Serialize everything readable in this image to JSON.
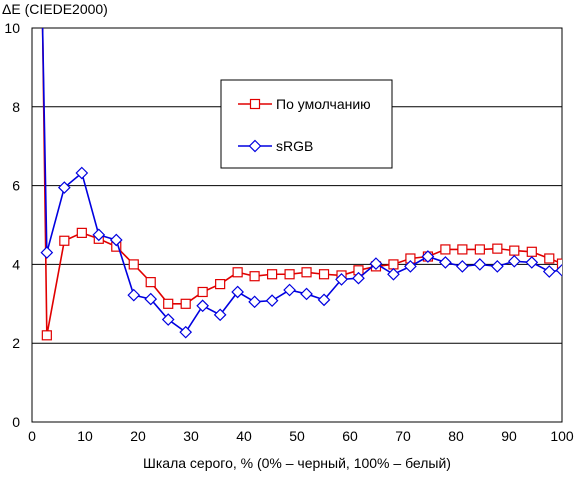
{
  "chart_data": {
    "type": "line",
    "title": "",
    "ylabel": "ΔE (CIEDE2000)",
    "xlabel": "Шкала серого, % (0% – черный, 100% – белый)",
    "xlim": [
      0,
      100
    ],
    "ylim": [
      0,
      10
    ],
    "xticks": [
      0,
      10,
      20,
      30,
      40,
      50,
      60,
      70,
      80,
      90,
      100
    ],
    "yticks": [
      0,
      2,
      4,
      6,
      8,
      10
    ],
    "grid": "horizontal",
    "legend_position": "upper-center",
    "series": [
      {
        "name": "По умолчанию",
        "color": "#e00000",
        "marker": "square",
        "x": [
          2,
          2.8,
          6.1,
          9.4,
          12.6,
          15.9,
          19.2,
          22.4,
          25.7,
          29,
          32.2,
          35.5,
          38.8,
          42,
          45.3,
          48.6,
          51.8,
          55.1,
          58.4,
          61.6,
          64.9,
          68.2,
          71.4,
          74.7,
          78,
          81.2,
          84.5,
          87.8,
          91,
          94.3,
          97.6,
          100
        ],
        "values": [
          10,
          2.2,
          4.6,
          4.8,
          4.65,
          4.45,
          4.0,
          3.55,
          3.0,
          3.0,
          3.3,
          3.5,
          3.8,
          3.7,
          3.75,
          3.75,
          3.8,
          3.75,
          3.72,
          3.85,
          3.95,
          4.0,
          4.15,
          4.2,
          4.38,
          4.38,
          4.38,
          4.4,
          4.35,
          4.32,
          4.15,
          4.02
        ]
      },
      {
        "name": "sRGB",
        "color": "#0000e0",
        "marker": "diamond",
        "x": [
          2,
          2.8,
          6.1,
          9.4,
          12.6,
          15.9,
          19.2,
          22.4,
          25.7,
          29,
          32.2,
          35.5,
          38.8,
          42,
          45.3,
          48.6,
          51.8,
          55.1,
          58.4,
          61.6,
          64.9,
          68.2,
          71.4,
          74.7,
          78,
          81.2,
          84.5,
          87.8,
          91,
          94.3,
          97.6,
          100
        ],
        "values": [
          10,
          4.3,
          5.95,
          6.32,
          4.75,
          4.62,
          3.22,
          3.12,
          2.6,
          2.28,
          2.95,
          2.72,
          3.3,
          3.05,
          3.08,
          3.35,
          3.25,
          3.1,
          3.62,
          3.65,
          4.02,
          3.75,
          3.95,
          4.2,
          4.05,
          3.95,
          4.0,
          3.95,
          4.08,
          4.05,
          3.82,
          3.85
        ]
      }
    ]
  }
}
